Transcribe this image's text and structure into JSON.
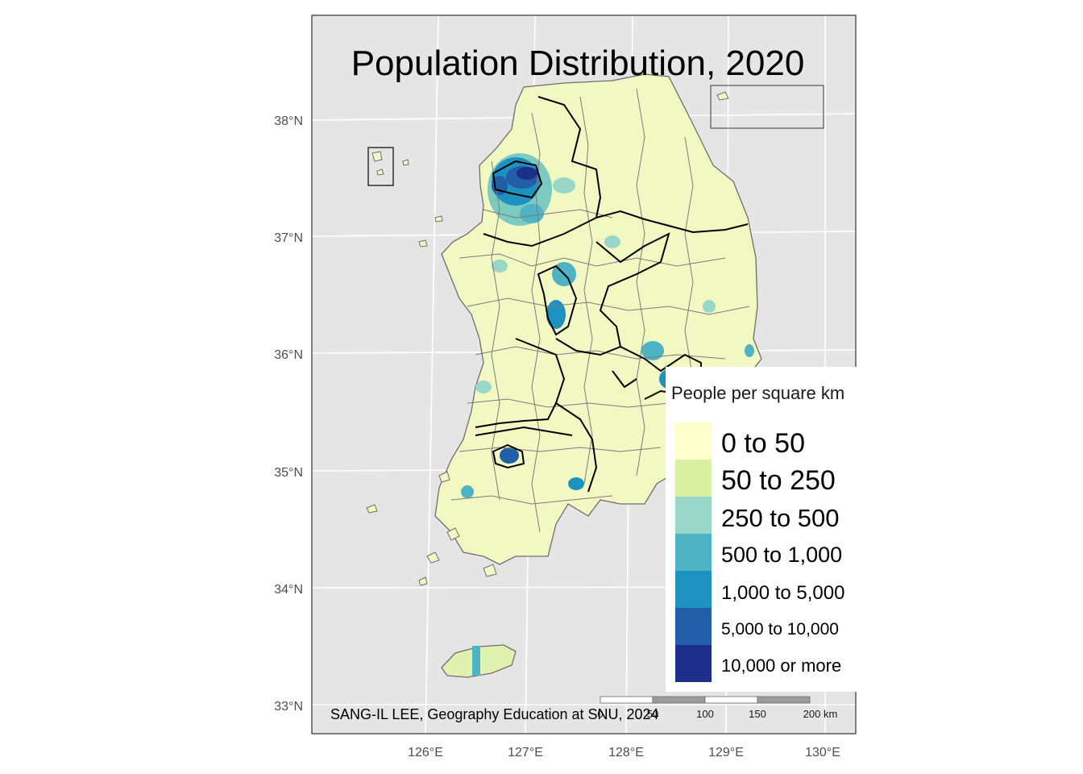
{
  "map": {
    "title": "Population Distribution, 2020",
    "credit": "SANG-IL LEE, Geography Education at SNU, 2024",
    "lat_ticks": [
      "38°N",
      "37°N",
      "36°N",
      "35°N",
      "34°N",
      "33°N"
    ],
    "lon_ticks": [
      "126°E",
      "127°E",
      "128°E",
      "129°E",
      "130°E"
    ],
    "scale_bar": {
      "labels": [
        "0",
        "50",
        "100",
        "150",
        "200 km"
      ]
    },
    "colors": {
      "panel_bg": "#e5e5e5",
      "graticule": "#ffffff",
      "district_border": "#6e6e6e",
      "province_border": "#000000"
    }
  },
  "legend": {
    "title": "People per square km",
    "items": [
      {
        "label": "0 to 50",
        "color": "#ffffcc"
      },
      {
        "label": "50 to 250",
        "color": "#d9f0a3"
      },
      {
        "label": "250 to 500",
        "color": "#99d8c9"
      },
      {
        "label": "500 to 1,000",
        "color": "#4eb3c4"
      },
      {
        "label": "1,000 to 5,000",
        "color": "#1d91c0"
      },
      {
        "label": "5,000 to 10,000",
        "color": "#225ea8"
      },
      {
        "label": "10,000 or more",
        "color": "#1d2f8a"
      }
    ]
  }
}
